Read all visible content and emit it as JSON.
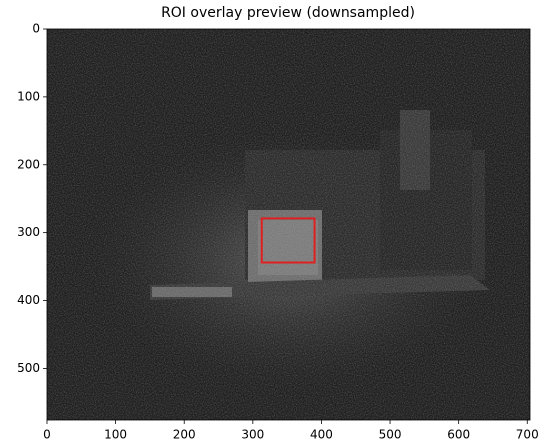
{
  "chart_data": {
    "type": "image",
    "title": "ROI overlay preview (downsampled)",
    "xlim": [
      0,
      704
    ],
    "ylim": [
      576,
      0
    ],
    "xticks": [
      0,
      100,
      200,
      300,
      400,
      500,
      600,
      700
    ],
    "yticks": [
      0,
      100,
      200,
      300,
      400,
      500
    ],
    "roi": {
      "x": 313,
      "y": 279,
      "width": 77,
      "height": 65,
      "color": "#e02020"
    }
  }
}
